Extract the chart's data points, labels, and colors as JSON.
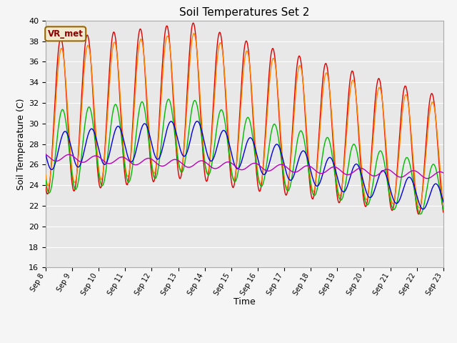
{
  "title": "Soil Temperatures Set 2",
  "xlabel": "Time",
  "ylabel": "Soil Temperature (C)",
  "ylim": [
    16,
    40
  ],
  "yticks": [
    16,
    18,
    20,
    22,
    24,
    26,
    28,
    30,
    32,
    34,
    36,
    38,
    40
  ],
  "annotation": "VR_met",
  "plot_bg": "#e8e8e8",
  "fig_bg": "#f5f5f5",
  "grid_color": "#ffffff",
  "series_colors": {
    "Tsoil -2cm": "#dd0000",
    "Tsoil -4cm": "#ff8800",
    "Tsoil -8cm": "#00bb00",
    "Tsoil -16cm": "#0000dd",
    "Tsoil -32cm": "#bb00bb"
  },
  "xtick_labels": [
    "Sep 8",
    "Sep 9",
    "Sep 10",
    "Sep 11",
    "Sep 12",
    "Sep 13",
    "Sep 14",
    "Sep 15",
    "Sep 16",
    "Sep 17",
    "Sep 18",
    "Sep 19",
    "Sep 20",
    "Sep 21",
    "Sep 22",
    "Sep 23"
  ]
}
